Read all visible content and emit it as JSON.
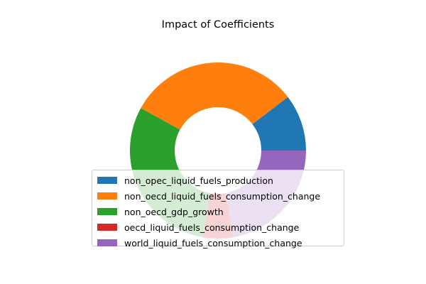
{
  "chart_data": {
    "type": "pie",
    "style": "donut",
    "title": "Impact of Coefficients",
    "categories": [
      "non_opec_liquid_fuels_production",
      "non_oecd_liquid_fuels_consumption_change",
      "non_oecd_gdp_growth",
      "oecd_liquid_fuels_consumption_change",
      "world_liquid_fuels_consumption_change"
    ],
    "values": [
      10.4,
      31.6,
      30.2,
      5.6,
      22.2
    ],
    "colors": [
      "#1f77b4",
      "#ff7f0e",
      "#2ca02c",
      "#d62728",
      "#9467bd"
    ],
    "legend": "lower-center"
  }
}
